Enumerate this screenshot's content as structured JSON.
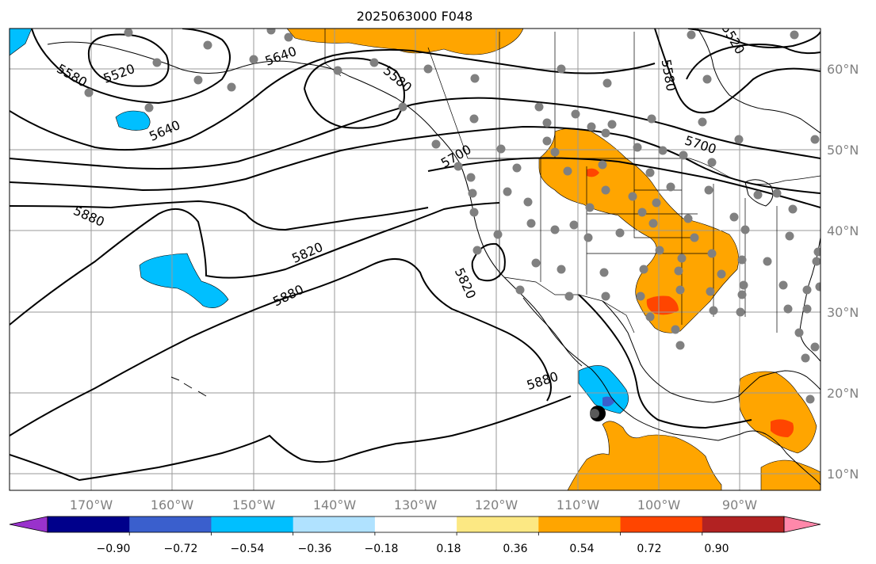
{
  "map": {
    "title": "2025063000 F048",
    "lon_labels": [
      "170°W",
      "160°W",
      "150°W",
      "140°W",
      "130°W",
      "120°W",
      "110°W",
      "100°W",
      "90°W"
    ],
    "lat_labels": [
      "60°N",
      "50°N",
      "40°N",
      "30°N",
      "20°N",
      "10°N"
    ],
    "contour_labels": [
      "5520",
      "5520",
      "5580",
      "5580",
      "5580",
      "5640",
      "5640",
      "5700",
      "5700",
      "5820",
      "5820",
      "5880",
      "5880",
      "5880"
    ],
    "colorbar": {
      "colors": [
        "#9932cc",
        "#00008b",
        "#3a5fcd",
        "#00bfff",
        "#b0e2ff",
        "#ffffff",
        "#fce883",
        "#ffa500",
        "#ff4500",
        "#b22222",
        "#ff88aa"
      ],
      "tick_labels": [
        "−0.90",
        "−0.72",
        "−0.54",
        "−0.36",
        "−0.18",
        "0.18",
        "0.36",
        "0.54",
        "0.72",
        "0.90"
      ]
    },
    "colors": {
      "negative_fill": "#00bfff",
      "positive_fill": "#ffa500",
      "strong_positive": "#ff4500",
      "dots": "#808080"
    }
  }
}
